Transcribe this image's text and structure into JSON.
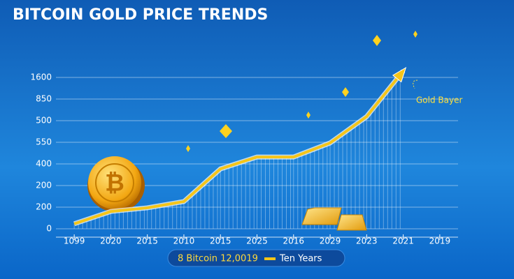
{
  "chart_data": {
    "type": "line",
    "title": "BITCOIN GOLD PRICE TRENDS",
    "categories": [
      "1099",
      "2020",
      "2015",
      "2010",
      "2015",
      "2025",
      "2016",
      "2029",
      "2023",
      "2021",
      "2019"
    ],
    "series": [
      {
        "name": "Ten Years",
        "color": "#f5c518",
        "values": [
          0.23,
          0.8,
          0.97,
          1.26,
          2.77,
          3.32,
          3.32,
          3.97,
          5.19,
          7.3,
          null
        ]
      }
    ],
    "ylim": [
      0,
      8
    ],
    "yticks": [
      {
        "value": 0,
        "label": "0"
      },
      {
        "value": 1,
        "label": "200"
      },
      {
        "value": 2,
        "label": "200"
      },
      {
        "value": 3,
        "label": "400"
      },
      {
        "value": 4,
        "label": "550"
      },
      {
        "value": 5,
        "label": "500"
      },
      {
        "value": 6,
        "label": "850"
      },
      {
        "value": 7,
        "label": "1600"
      }
    ],
    "grid": true,
    "annotations": [
      "Gold Bayer",
      "8 Bitcoin 12,0019"
    ]
  }
}
